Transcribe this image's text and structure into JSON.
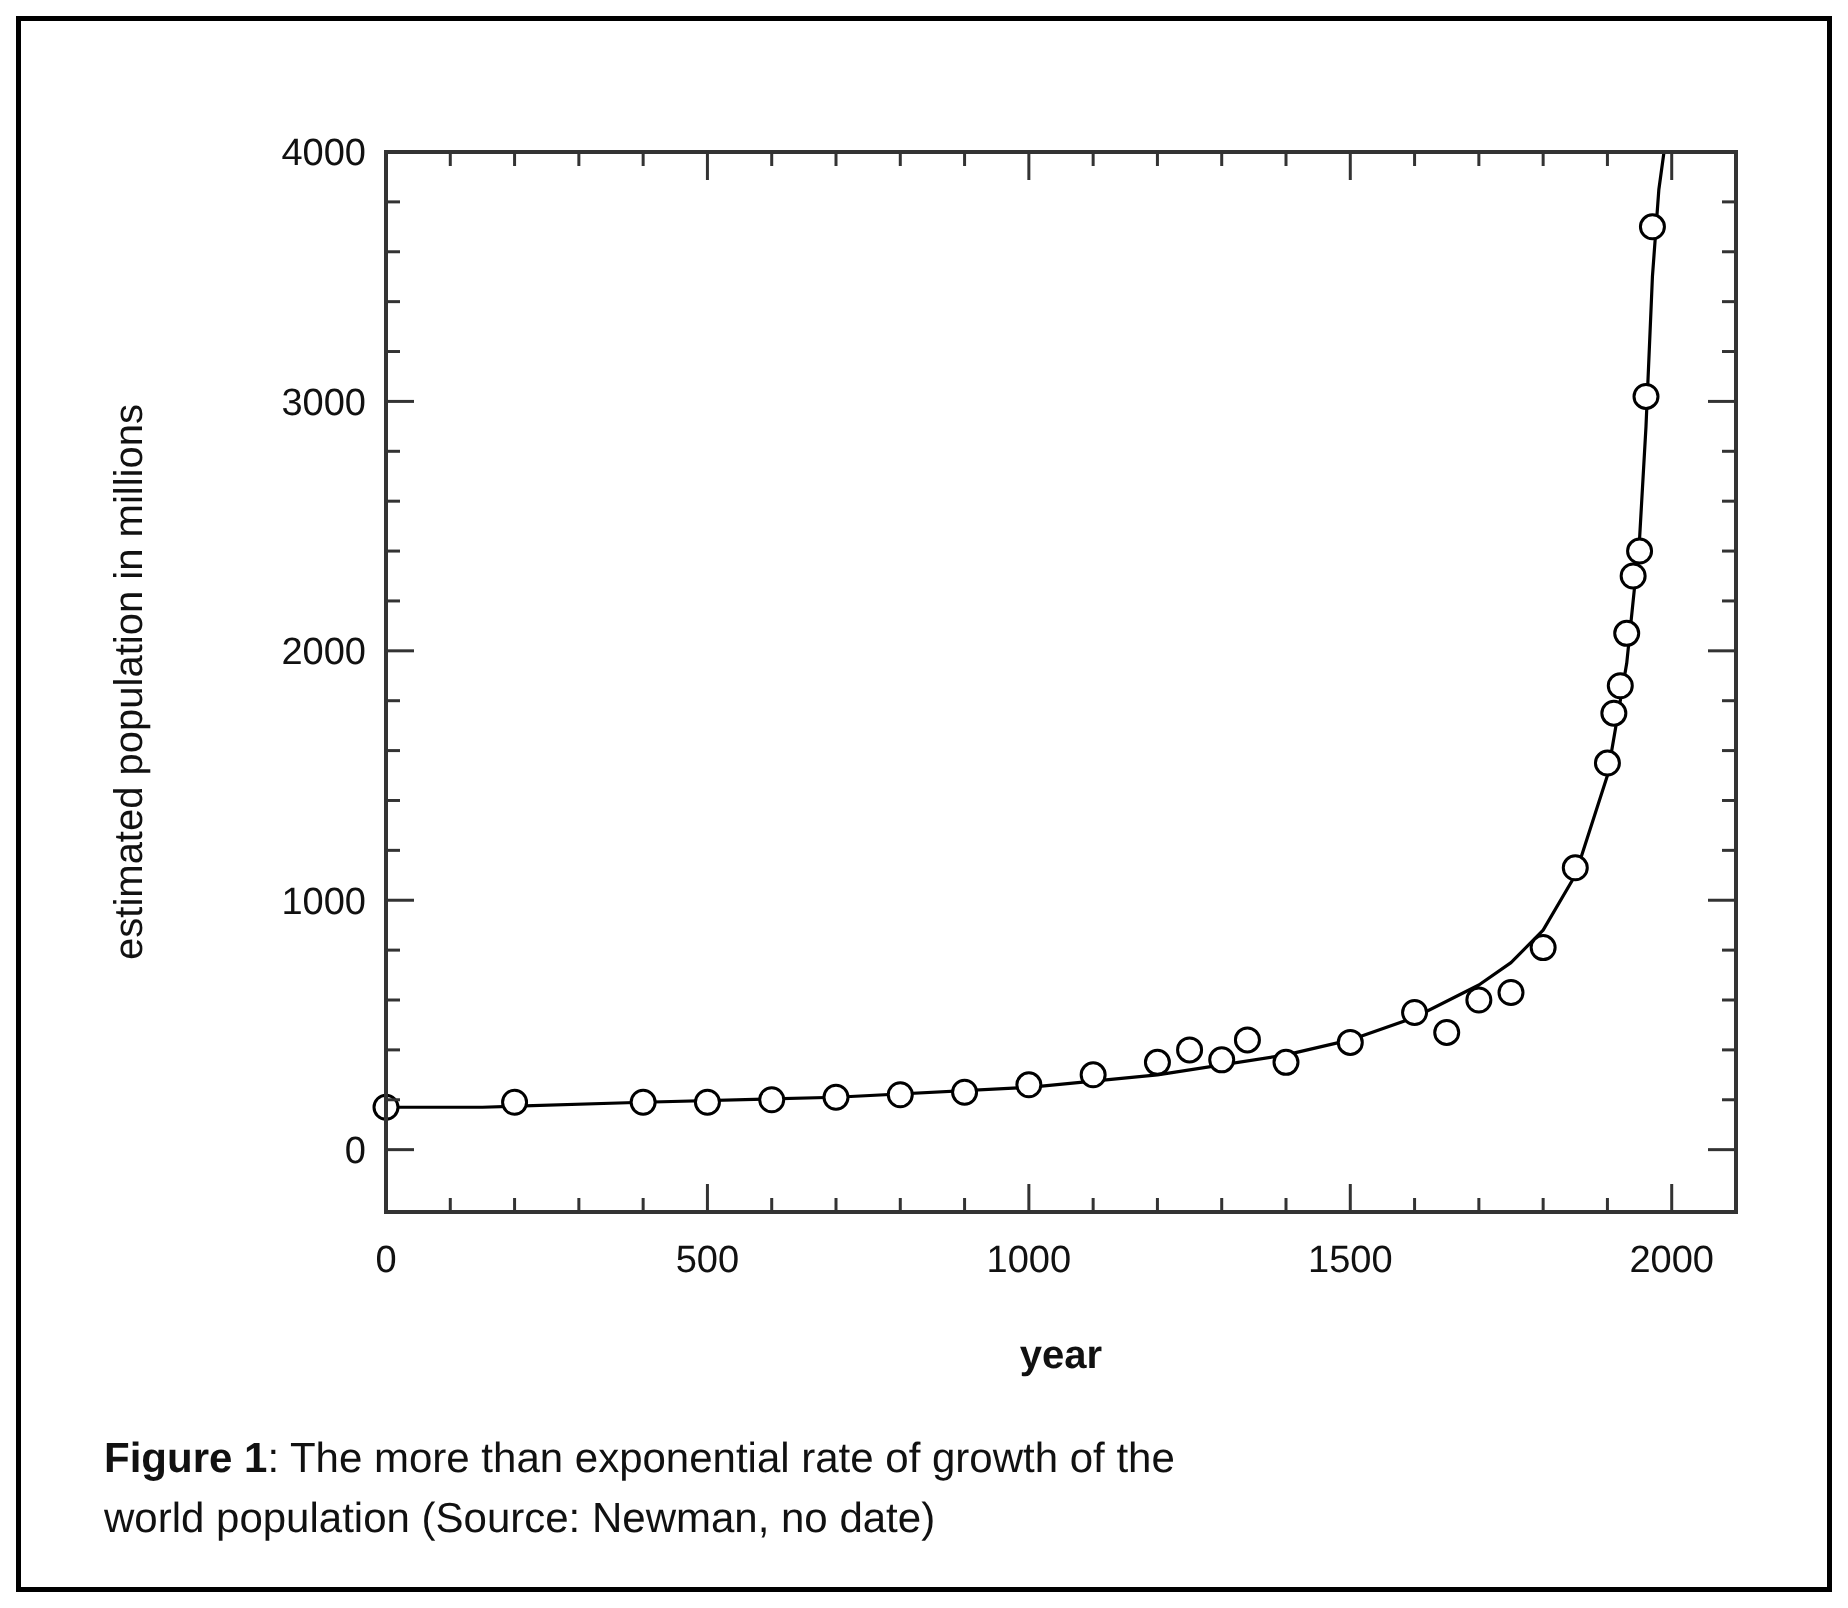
{
  "chart_data": {
    "type": "scatter",
    "xlabel": "year",
    "ylabel": "estimated population in millions",
    "annotations": [
      "Figure 1: The more than exponential rate of growth of the world population (Source: Newman, no date)"
    ],
    "xlim": [
      0,
      2100
    ],
    "ylim": [
      -250,
      4000
    ],
    "xticks": [
      0,
      {
        "value": 100,
        "label": null
      },
      {
        "value": 200,
        "label": null
      },
      {
        "value": 300,
        "label": null
      },
      {
        "value": 400,
        "label": null
      },
      500,
      {
        "value": 600,
        "label": null
      },
      {
        "value": 700,
        "label": null
      },
      {
        "value": 800,
        "label": null
      },
      {
        "value": 900,
        "label": null
      },
      1000,
      {
        "value": 1100,
        "label": null
      },
      {
        "value": 1200,
        "label": null
      },
      {
        "value": 1300,
        "label": null
      },
      {
        "value": 1400,
        "label": null
      },
      1500,
      {
        "value": 1600,
        "label": null
      },
      {
        "value": 1700,
        "label": null
      },
      {
        "value": 1800,
        "label": null
      },
      {
        "value": 1900,
        "label": null
      },
      2000
    ],
    "yticks": [
      0,
      {
        "value": 200,
        "label": null
      },
      {
        "value": 400,
        "label": null
      },
      {
        "value": 600,
        "label": null
      },
      {
        "value": 800,
        "label": null
      },
      1000,
      {
        "value": 1200,
        "label": null
      },
      {
        "value": 1400,
        "label": null
      },
      {
        "value": 1600,
        "label": null
      },
      {
        "value": 1800,
        "label": null
      },
      2000,
      {
        "value": 2200,
        "label": null
      },
      {
        "value": 2400,
        "label": null
      },
      {
        "value": 2600,
        "label": null
      },
      {
        "value": 2800,
        "label": null
      },
      3000,
      {
        "value": 3200,
        "label": null
      },
      {
        "value": 3400,
        "label": null
      },
      {
        "value": 3600,
        "label": null
      },
      {
        "value": 3800,
        "label": null
      },
      4000
    ],
    "grid": false,
    "series": [
      {
        "marker": "circle",
        "color": "#000000",
        "x": [
          0,
          200,
          400,
          500,
          600,
          700,
          800,
          900,
          1000,
          1100,
          1200,
          1250,
          1300,
          1340,
          1400,
          1500,
          1600,
          1650,
          1700,
          1750,
          1800,
          1850,
          1900,
          1910,
          1920,
          1930,
          1940,
          1950,
          1960,
          1970
        ],
        "values": [
          170,
          190,
          190,
          190,
          200,
          210,
          220,
          230,
          260,
          300,
          350,
          400,
          360,
          440,
          350,
          430,
          550,
          470,
          600,
          630,
          810,
          1130,
          1550,
          1750,
          1860,
          2070,
          2300,
          2400,
          3020,
          3700
        ]
      },
      {
        "type": "line",
        "marker": "none",
        "line_style": "solid",
        "color": "#000000",
        "x": [
          0,
          150,
          400,
          700,
          1000,
          1200,
          1400,
          1500,
          1600,
          1700,
          1750,
          1800,
          1850,
          1900,
          1930,
          1950,
          1960,
          1970,
          1980,
          1988
        ],
        "values": [
          170,
          170,
          190,
          210,
          250,
          300,
          380,
          440,
          530,
          660,
          750,
          880,
          1100,
          1500,
          1950,
          2450,
          2900,
          3500,
          3850,
          4000
        ]
      }
    ]
  }
}
